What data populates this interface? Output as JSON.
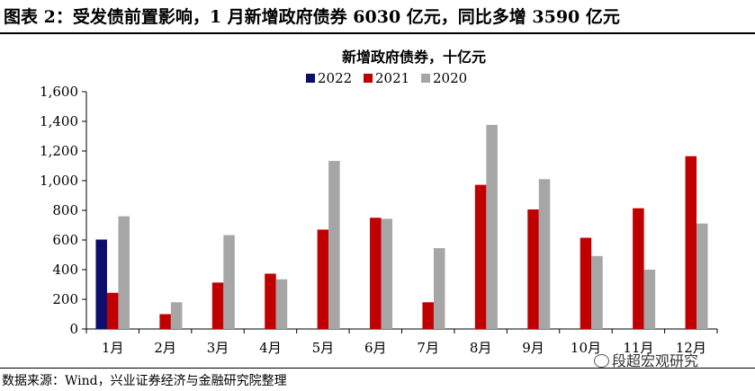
{
  "figure_title": "图表 2：受发债前置影响，1 月新增政府债券 6030 亿元，同比多增 3590 亿元",
  "source_note": "数据来源：Wind，兴业证券经济与金融研究院整理",
  "watermark": "段超宏观研究",
  "watermark_icon": "wechat-icon",
  "chart_data": {
    "type": "bar",
    "title": "新增政府债券，十亿元",
    "xlabel": "",
    "ylabel": "",
    "categories": [
      "1月",
      "2月",
      "3月",
      "4月",
      "5月",
      "6月",
      "7月",
      "8月",
      "9月",
      "10月",
      "11月",
      "12月"
    ],
    "series": [
      {
        "name": "2022",
        "color": "#0d0d6b",
        "values": [
          603,
          null,
          null,
          null,
          null,
          null,
          null,
          null,
          null,
          null,
          null,
          null
        ]
      },
      {
        "name": "2021",
        "color": "#c00000",
        "values": [
          244,
          100,
          313,
          373,
          670,
          750,
          180,
          972,
          806,
          615,
          814,
          1165
        ]
      },
      {
        "name": "2020",
        "color": "#a6a6a6",
        "values": [
          760,
          180,
          633,
          335,
          1133,
          743,
          545,
          1376,
          1010,
          492,
          400,
          711
        ]
      }
    ],
    "ylim": [
      0,
      1600
    ],
    "yticks": [
      "0",
      "200",
      "400",
      "600",
      "800",
      "1,000",
      "1,200",
      "1,400",
      "1,600"
    ],
    "ytick_values": [
      0,
      200,
      400,
      600,
      800,
      1000,
      1200,
      1400,
      1600
    ],
    "legend_position": "top-center",
    "grid": false
  }
}
